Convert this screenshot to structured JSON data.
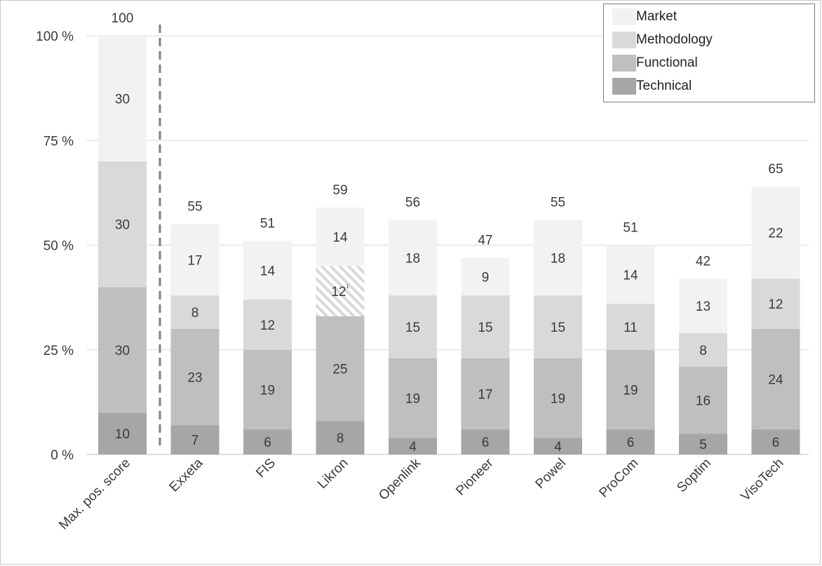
{
  "chart_data": {
    "type": "bar",
    "stacked": true,
    "categories": [
      "Max. pos. score",
      "Exxeta",
      "FIS",
      "Likron",
      "Openlink",
      "Pioneer",
      "Powel",
      "ProCom",
      "Soptim",
      "VisoTech"
    ],
    "series": [
      {
        "name": "Technical",
        "color": "#a6a6a6",
        "values": [
          10,
          7,
          6,
          8,
          4,
          6,
          4,
          6,
          5,
          6
        ]
      },
      {
        "name": "Functional",
        "color": "#bfbfbf",
        "values": [
          30,
          23,
          19,
          25,
          19,
          17,
          19,
          19,
          16,
          24
        ]
      },
      {
        "name": "Methodology",
        "color": "#d9d9d9",
        "values": [
          30,
          8,
          12,
          12,
          15,
          15,
          15,
          11,
          8,
          12
        ]
      },
      {
        "name": "Market",
        "color": "#f2f2f2",
        "values": [
          30,
          17,
          14,
          14,
          18,
          9,
          18,
          14,
          13,
          22
        ]
      }
    ],
    "segment_labels": {
      "Likron": {
        "Methodology": "12¹"
      }
    },
    "hatched_segments": [
      {
        "category": "Likron",
        "series": "Methodology"
      }
    ],
    "totals": [
      100,
      55,
      51,
      59,
      56,
      47,
      55,
      51,
      42,
      65
    ],
    "ylim": [
      0,
      100
    ],
    "yticks": [
      "0 %",
      "25 %",
      "50 %",
      "75 %",
      "100 %"
    ],
    "ytick_values": [
      0,
      25,
      50,
      75,
      100
    ],
    "grid": true,
    "legend_position": "top-right",
    "legend_order": [
      "Market",
      "Methodology",
      "Functional",
      "Technical"
    ],
    "divider_after_category": "Max. pos. score",
    "title": "",
    "xlabel": "",
    "ylabel": ""
  }
}
